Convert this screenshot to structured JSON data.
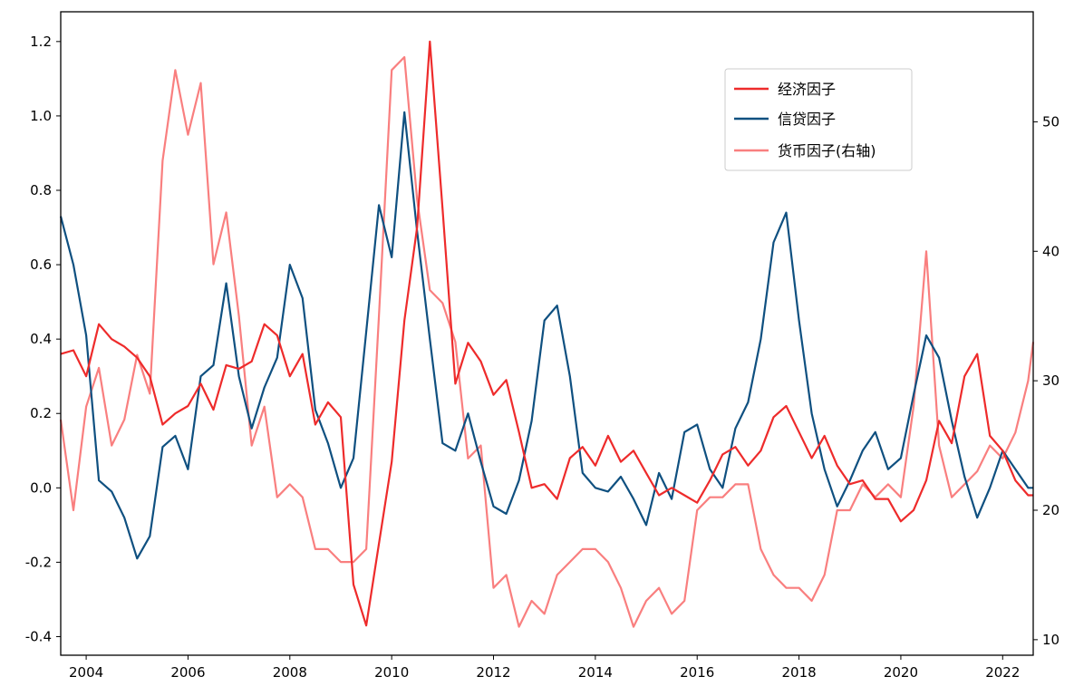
{
  "chart_data": {
    "type": "line",
    "title": "",
    "xlabel": "",
    "ylabel": "",
    "xlim": [
      2003.5,
      2022.6
    ],
    "ylim_left": [
      -0.45,
      1.28
    ],
    "ylim_right": [
      8.8,
      58.5
    ],
    "x_ticks": [
      2004,
      2006,
      2008,
      2010,
      2012,
      2014,
      2016,
      2018,
      2020,
      2022
    ],
    "x_tick_labels": [
      "2004",
      "2006",
      "2008",
      "2010",
      "2012",
      "2014",
      "2016",
      "2018",
      "2020",
      "2022"
    ],
    "y_ticks_left": [
      -0.4,
      -0.2,
      0.0,
      0.2,
      0.4,
      0.6,
      0.8,
      1.0,
      1.2
    ],
    "y_tick_labels_left": [
      "-0.4",
      "-0.2",
      "0.0",
      "0.2",
      "0.4",
      "0.6",
      "0.8",
      "1.0",
      "1.2"
    ],
    "y_ticks_right": [
      10,
      20,
      30,
      40,
      50
    ],
    "y_tick_labels_right": [
      "10",
      "20",
      "30",
      "40",
      "50"
    ],
    "grid": false,
    "legend_position": "upper-right",
    "series": [
      {
        "name": "经济因子",
        "axis": "left",
        "color": "#ee2b2b",
        "points": [
          [
            2003.5,
            0.36
          ],
          [
            2003.75,
            0.37
          ],
          [
            2004.0,
            0.3
          ],
          [
            2004.25,
            0.44
          ],
          [
            2004.5,
            0.4
          ],
          [
            2004.75,
            0.38
          ],
          [
            2005.0,
            0.35
          ],
          [
            2005.25,
            0.3
          ],
          [
            2005.5,
            0.17
          ],
          [
            2005.75,
            0.2
          ],
          [
            2006.0,
            0.22
          ],
          [
            2006.25,
            0.28
          ],
          [
            2006.5,
            0.21
          ],
          [
            2006.75,
            0.33
          ],
          [
            2007.0,
            0.32
          ],
          [
            2007.25,
            0.34
          ],
          [
            2007.5,
            0.44
          ],
          [
            2007.75,
            0.41
          ],
          [
            2008.0,
            0.3
          ],
          [
            2008.25,
            0.36
          ],
          [
            2008.5,
            0.17
          ],
          [
            2008.75,
            0.23
          ],
          [
            2009.0,
            0.19
          ],
          [
            2009.25,
            -0.26
          ],
          [
            2009.5,
            -0.37
          ],
          [
            2009.75,
            -0.15
          ],
          [
            2010.0,
            0.07
          ],
          [
            2010.25,
            0.45
          ],
          [
            2010.5,
            0.7
          ],
          [
            2010.75,
            1.2
          ],
          [
            2011.0,
            0.75
          ],
          [
            2011.25,
            0.28
          ],
          [
            2011.5,
            0.39
          ],
          [
            2011.75,
            0.34
          ],
          [
            2012.0,
            0.25
          ],
          [
            2012.25,
            0.29
          ],
          [
            2012.5,
            0.15
          ],
          [
            2012.75,
            0.0
          ],
          [
            2013.0,
            0.01
          ],
          [
            2013.25,
            -0.03
          ],
          [
            2013.5,
            0.08
          ],
          [
            2013.75,
            0.11
          ],
          [
            2014.0,
            0.06
          ],
          [
            2014.25,
            0.14
          ],
          [
            2014.5,
            0.07
          ],
          [
            2014.75,
            0.1
          ],
          [
            2015.0,
            0.04
          ],
          [
            2015.25,
            -0.02
          ],
          [
            2015.5,
            0.0
          ],
          [
            2015.75,
            -0.02
          ],
          [
            2016.0,
            -0.04
          ],
          [
            2016.25,
            0.02
          ],
          [
            2016.5,
            0.09
          ],
          [
            2016.75,
            0.11
          ],
          [
            2017.0,
            0.06
          ],
          [
            2017.25,
            0.1
          ],
          [
            2017.5,
            0.19
          ],
          [
            2017.75,
            0.22
          ],
          [
            2018.0,
            0.15
          ],
          [
            2018.25,
            0.08
          ],
          [
            2018.5,
            0.14
          ],
          [
            2018.75,
            0.06
          ],
          [
            2019.0,
            0.01
          ],
          [
            2019.25,
            0.02
          ],
          [
            2019.5,
            -0.03
          ],
          [
            2019.75,
            -0.03
          ],
          [
            2020.0,
            -0.09
          ],
          [
            2020.25,
            -0.06
          ],
          [
            2020.5,
            0.02
          ],
          [
            2020.75,
            0.18
          ],
          [
            2021.0,
            0.12
          ],
          [
            2021.25,
            0.3
          ],
          [
            2021.5,
            0.36
          ],
          [
            2021.75,
            0.14
          ],
          [
            2022.0,
            0.1
          ],
          [
            2022.25,
            0.02
          ],
          [
            2022.5,
            -0.02
          ],
          [
            2022.6,
            -0.02
          ]
        ]
      },
      {
        "name": "信贷因子",
        "axis": "left",
        "color": "#0f5080",
        "points": [
          [
            2003.5,
            0.73
          ],
          [
            2003.75,
            0.6
          ],
          [
            2004.0,
            0.41
          ],
          [
            2004.25,
            0.02
          ],
          [
            2004.5,
            -0.01
          ],
          [
            2004.75,
            -0.08
          ],
          [
            2005.0,
            -0.19
          ],
          [
            2005.25,
            -0.13
          ],
          [
            2005.5,
            0.11
          ],
          [
            2005.75,
            0.14
          ],
          [
            2006.0,
            0.05
          ],
          [
            2006.25,
            0.3
          ],
          [
            2006.5,
            0.33
          ],
          [
            2006.75,
            0.55
          ],
          [
            2007.0,
            0.3
          ],
          [
            2007.25,
            0.16
          ],
          [
            2007.5,
            0.27
          ],
          [
            2007.75,
            0.35
          ],
          [
            2008.0,
            0.6
          ],
          [
            2008.25,
            0.51
          ],
          [
            2008.5,
            0.21
          ],
          [
            2008.75,
            0.12
          ],
          [
            2009.0,
            0.0
          ],
          [
            2009.25,
            0.08
          ],
          [
            2009.5,
            0.42
          ],
          [
            2009.75,
            0.76
          ],
          [
            2010.0,
            0.62
          ],
          [
            2010.25,
            1.01
          ],
          [
            2010.5,
            0.69
          ],
          [
            2010.75,
            0.4
          ],
          [
            2011.0,
            0.12
          ],
          [
            2011.25,
            0.1
          ],
          [
            2011.5,
            0.2
          ],
          [
            2011.75,
            0.07
          ],
          [
            2012.0,
            -0.05
          ],
          [
            2012.25,
            -0.07
          ],
          [
            2012.5,
            0.02
          ],
          [
            2012.75,
            0.18
          ],
          [
            2013.0,
            0.45
          ],
          [
            2013.25,
            0.49
          ],
          [
            2013.5,
            0.3
          ],
          [
            2013.75,
            0.04
          ],
          [
            2014.0,
            0.0
          ],
          [
            2014.25,
            -0.01
          ],
          [
            2014.5,
            0.03
          ],
          [
            2014.75,
            -0.03
          ],
          [
            2015.0,
            -0.1
          ],
          [
            2015.25,
            0.04
          ],
          [
            2015.5,
            -0.03
          ],
          [
            2015.75,
            0.15
          ],
          [
            2016.0,
            0.17
          ],
          [
            2016.25,
            0.05
          ],
          [
            2016.5,
            0.0
          ],
          [
            2016.75,
            0.16
          ],
          [
            2017.0,
            0.23
          ],
          [
            2017.25,
            0.4
          ],
          [
            2017.5,
            0.66
          ],
          [
            2017.75,
            0.74
          ],
          [
            2018.0,
            0.45
          ],
          [
            2018.25,
            0.2
          ],
          [
            2018.5,
            0.05
          ],
          [
            2018.75,
            -0.05
          ],
          [
            2019.0,
            0.02
          ],
          [
            2019.25,
            0.1
          ],
          [
            2019.5,
            0.15
          ],
          [
            2019.75,
            0.05
          ],
          [
            2020.0,
            0.08
          ],
          [
            2020.25,
            0.25
          ],
          [
            2020.5,
            0.41
          ],
          [
            2020.75,
            0.35
          ],
          [
            2021.0,
            0.18
          ],
          [
            2021.25,
            0.03
          ],
          [
            2021.5,
            -0.08
          ],
          [
            2021.75,
            0.0
          ],
          [
            2022.0,
            0.1
          ],
          [
            2022.25,
            0.05
          ],
          [
            2022.5,
            0.0
          ],
          [
            2022.6,
            0.0
          ]
        ]
      },
      {
        "name": "货币因子(右轴)",
        "axis": "right",
        "color": "#f97f7f",
        "points": [
          [
            2003.5,
            27
          ],
          [
            2003.75,
            20
          ],
          [
            2004.0,
            28
          ],
          [
            2004.25,
            31
          ],
          [
            2004.5,
            25
          ],
          [
            2004.75,
            27
          ],
          [
            2005.0,
            32
          ],
          [
            2005.25,
            29
          ],
          [
            2005.5,
            47
          ],
          [
            2005.75,
            54
          ],
          [
            2006.0,
            49
          ],
          [
            2006.25,
            53
          ],
          [
            2006.5,
            39
          ],
          [
            2006.75,
            43
          ],
          [
            2007.0,
            35
          ],
          [
            2007.25,
            25
          ],
          [
            2007.5,
            28
          ],
          [
            2007.75,
            21
          ],
          [
            2008.0,
            22
          ],
          [
            2008.25,
            21
          ],
          [
            2008.5,
            17
          ],
          [
            2008.75,
            17
          ],
          [
            2009.0,
            16
          ],
          [
            2009.25,
            16
          ],
          [
            2009.5,
            17
          ],
          [
            2009.75,
            35
          ],
          [
            2010.0,
            54
          ],
          [
            2010.25,
            55
          ],
          [
            2010.5,
            44
          ],
          [
            2010.75,
            37
          ],
          [
            2011.0,
            36
          ],
          [
            2011.25,
            33
          ],
          [
            2011.5,
            24
          ],
          [
            2011.75,
            25
          ],
          [
            2012.0,
            14
          ],
          [
            2012.25,
            15
          ],
          [
            2012.5,
            11
          ],
          [
            2012.75,
            13
          ],
          [
            2013.0,
            12
          ],
          [
            2013.25,
            15
          ],
          [
            2013.5,
            16
          ],
          [
            2013.75,
            17
          ],
          [
            2014.0,
            17
          ],
          [
            2014.25,
            16
          ],
          [
            2014.5,
            14
          ],
          [
            2014.75,
            11
          ],
          [
            2015.0,
            13
          ],
          [
            2015.25,
            14
          ],
          [
            2015.5,
            12
          ],
          [
            2015.75,
            13
          ],
          [
            2016.0,
            20
          ],
          [
            2016.25,
            21
          ],
          [
            2016.5,
            21
          ],
          [
            2016.75,
            22
          ],
          [
            2017.0,
            22
          ],
          [
            2017.25,
            17
          ],
          [
            2017.5,
            15
          ],
          [
            2017.75,
            14
          ],
          [
            2018.0,
            14
          ],
          [
            2018.25,
            13
          ],
          [
            2018.5,
            15
          ],
          [
            2018.75,
            20
          ],
          [
            2019.0,
            20
          ],
          [
            2019.25,
            22
          ],
          [
            2019.5,
            21
          ],
          [
            2019.75,
            22
          ],
          [
            2020.0,
            21
          ],
          [
            2020.25,
            28
          ],
          [
            2020.5,
            40
          ],
          [
            2020.75,
            25
          ],
          [
            2021.0,
            21
          ],
          [
            2021.25,
            22
          ],
          [
            2021.5,
            23
          ],
          [
            2021.75,
            25
          ],
          [
            2022.0,
            24
          ],
          [
            2022.25,
            26
          ],
          [
            2022.5,
            30
          ],
          [
            2022.6,
            33
          ]
        ]
      }
    ]
  }
}
